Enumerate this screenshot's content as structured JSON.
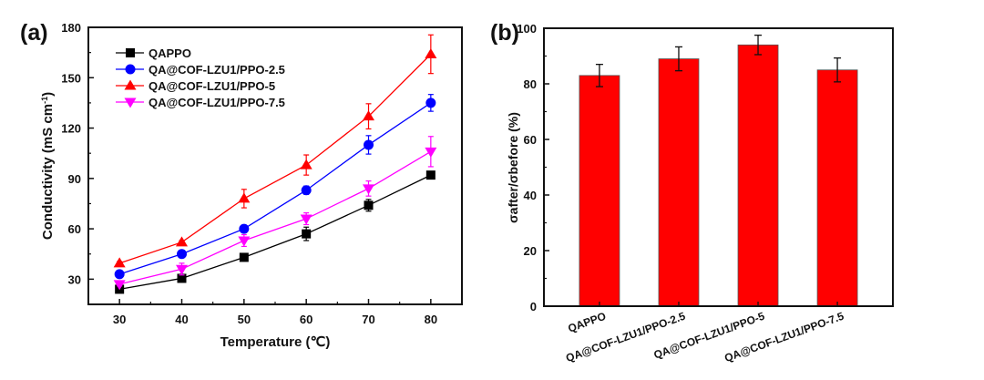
{
  "chart_data": [
    {
      "type": "line",
      "panel_label": "(a)",
      "xlabel": "Temperature (℃)",
      "ylabel": "Conductivity (mS cm",
      "ylabel_sup": "-1",
      "ylabel_close": ")",
      "xlim": [
        25,
        85
      ],
      "ylim": [
        15,
        180
      ],
      "xticks": [
        30,
        40,
        50,
        60,
        70,
        80
      ],
      "yticks": [
        30,
        60,
        90,
        120,
        150,
        180
      ],
      "legend_position": "top-left",
      "grid": false,
      "x": [
        30,
        40,
        50,
        60,
        70,
        80
      ],
      "series": [
        {
          "name": "QAPPO",
          "color": "#000000",
          "marker": "square",
          "values": [
            24,
            30.5,
            43,
            57,
            74,
            92
          ],
          "errors": [
            1,
            1.5,
            1,
            4,
            3.5,
            2
          ]
        },
        {
          "name": "QA@COF-LZU1/PPO-2.5",
          "color": "#0000ff",
          "marker": "circle",
          "values": [
            33,
            45,
            60,
            83,
            110,
            135
          ],
          "errors": [
            1,
            1,
            2,
            2.5,
            5.5,
            5
          ]
        },
        {
          "name": "QA@COF-LZU1/PPO-5",
          "color": "#ff0000",
          "marker": "triangle-up",
          "values": [
            39.5,
            52,
            78,
            98,
            127,
            164
          ],
          "errors": [
            1,
            1,
            5.5,
            6,
            7.5,
            11.5
          ]
        },
        {
          "name": "QA@COF-LZU1/PPO-7.5",
          "color": "#ff00ff",
          "marker": "triangle-down",
          "values": [
            27,
            36,
            53,
            66,
            84,
            106
          ],
          "errors": [
            1,
            3.5,
            3.5,
            3.5,
            4.5,
            9
          ]
        }
      ]
    },
    {
      "type": "bar",
      "panel_label": "(b)",
      "xlabel": "",
      "ylabel": "σafter/σbefore (%)",
      "ylim": [
        0,
        100
      ],
      "yticks": [
        0,
        20,
        40,
        60,
        80,
        100
      ],
      "grid": false,
      "bar_color": "#ff0000",
      "categories": [
        "QAPPO",
        "QA@COF-LZU1/PPO-2.5",
        "QA@COF-LZU1/PPO-5",
        "QA@COF-LZU1/PPO-7.5"
      ],
      "values": [
        83,
        89,
        94,
        85
      ],
      "errors": [
        4,
        4.3,
        3.5,
        4.3
      ]
    }
  ]
}
